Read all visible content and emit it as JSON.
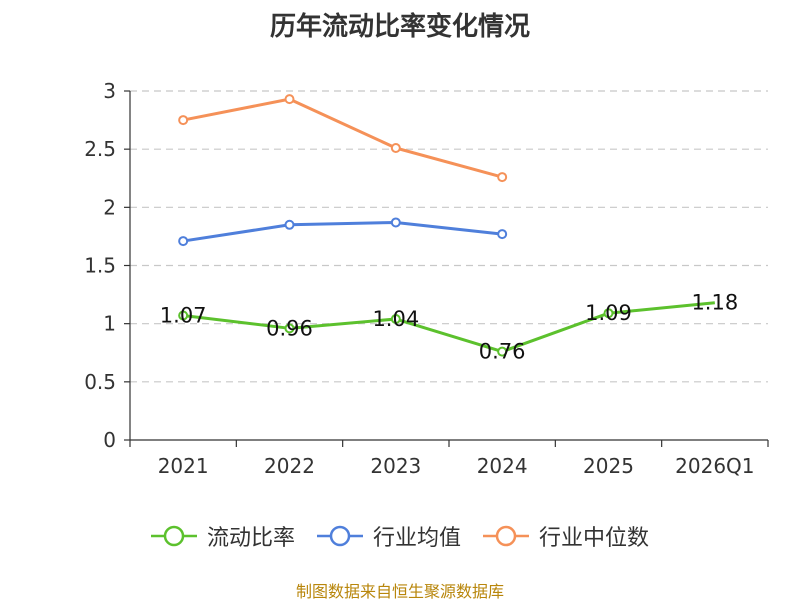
{
  "chart_data": {
    "type": "line",
    "title": "历年流动比率变化情况",
    "categories": [
      "2021",
      "2022",
      "2023",
      "2024",
      "2025",
      "2026Q1"
    ],
    "ylim": [
      0,
      3
    ],
    "yticks": [
      "0",
      "0.5",
      "1",
      "1.5",
      "2",
      "2.5",
      "3"
    ],
    "grid": true,
    "legend_position": "bottom",
    "series": [
      {
        "name": "流动比率",
        "color": "#5cc12d",
        "values": [
          1.07,
          0.96,
          1.04,
          0.76,
          1.09,
          1.18
        ],
        "labels": [
          "1.07",
          "0.96",
          "1.04",
          "0.76",
          "1.09",
          "1.18"
        ],
        "markers": [
          true,
          true,
          true,
          true,
          true,
          false
        ]
      },
      {
        "name": "行业均值",
        "color": "#4f7fdb",
        "values": [
          1.71,
          1.85,
          1.87,
          1.77,
          null,
          null
        ]
      },
      {
        "name": "行业中位数",
        "color": "#f59158",
        "values": [
          2.75,
          2.93,
          2.51,
          2.26,
          null,
          null
        ]
      }
    ]
  },
  "source_text": "制图数据来自恒生聚源数据库"
}
